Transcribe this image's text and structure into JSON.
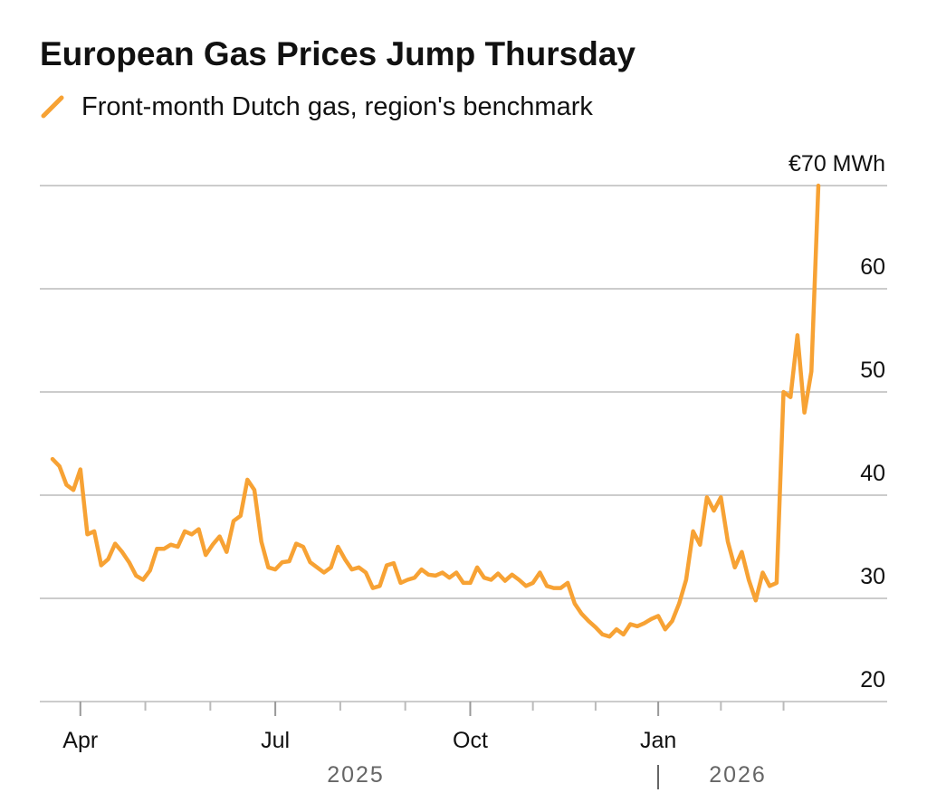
{
  "chart_data": {
    "type": "line",
    "title": "European Gas Prices Jump Thursday",
    "categories": [
      null,
      null,
      null,
      null,
      "Apr",
      null,
      null,
      null,
      null,
      null,
      null,
      null,
      null,
      null,
      null,
      null,
      null,
      null,
      null,
      null,
      null,
      null,
      null,
      null,
      null,
      null,
      null,
      null,
      null,
      null,
      null,
      null,
      "Jul",
      null,
      null,
      null,
      null,
      null,
      null,
      null,
      null,
      null,
      null,
      null,
      null,
      null,
      null,
      null,
      null,
      null,
      null,
      null,
      null,
      null,
      null,
      null,
      null,
      null,
      null,
      null,
      "Oct",
      null,
      null,
      null,
      null,
      null,
      null,
      null,
      null,
      null,
      null,
      null,
      null,
      null,
      null,
      null,
      null,
      null,
      null,
      null,
      null,
      null,
      null,
      null,
      null,
      null,
      null,
      "Jan",
      null,
      null,
      null,
      null,
      null,
      null,
      null,
      null,
      null,
      null,
      null,
      null,
      null,
      null,
      null,
      null,
      null,
      null,
      null,
      null,
      null,
      null,
      null
    ],
    "year_labels": [
      "2025",
      "2026"
    ],
    "series": [
      {
        "name": "Front-month Dutch gas, region's benchmark",
        "color": "#f7a234",
        "values": [
          43.5,
          42.8,
          41,
          40.5,
          42.5,
          36.2,
          36.5,
          33.2,
          33.8,
          35.3,
          34.5,
          33.5,
          32.2,
          31.8,
          32.7,
          34.8,
          34.8,
          35.2,
          35.0,
          36.5,
          36.2,
          36.7,
          34.2,
          35.2,
          36.0,
          34.5,
          37.5,
          38.0,
          41.5,
          40.5,
          35.5,
          33.0,
          32.8,
          33.5,
          33.6,
          35.3,
          35.0,
          33.5,
          33.0,
          32.5,
          33.0,
          35.0,
          33.8,
          32.8,
          33.0,
          32.5,
          31.0,
          31.2,
          33.2,
          33.4,
          31.5,
          31.8,
          32.0,
          32.8,
          32.3,
          32.2,
          32.5,
          32.0,
          32.5,
          31.5,
          31.5,
          33.0,
          32.0,
          31.8,
          32.4,
          31.7,
          32.3,
          31.8,
          31.2,
          31.5,
          32.5,
          31.2,
          31.0,
          31.0,
          31.5,
          29.5,
          28.5,
          27.8,
          27.2,
          26.5,
          26.3,
          27.0,
          26.5,
          27.5,
          27.3,
          27.6,
          28.0,
          28.3,
          27.0,
          27.8,
          29.5,
          31.8,
          36.5,
          35.2,
          39.8,
          38.5,
          39.8,
          35.5,
          33.0,
          34.5,
          31.8,
          29.8,
          32.5,
          31.2,
          31.5,
          50.0,
          49.5,
          55.5,
          48.0,
          52.0,
          70.0
        ]
      }
    ],
    "ylim": [
      20,
      70
    ],
    "yticks": [
      20,
      30,
      40,
      50,
      60,
      {
        "value": 70,
        "label": "€70 MWh"
      }
    ],
    "grid": true
  }
}
